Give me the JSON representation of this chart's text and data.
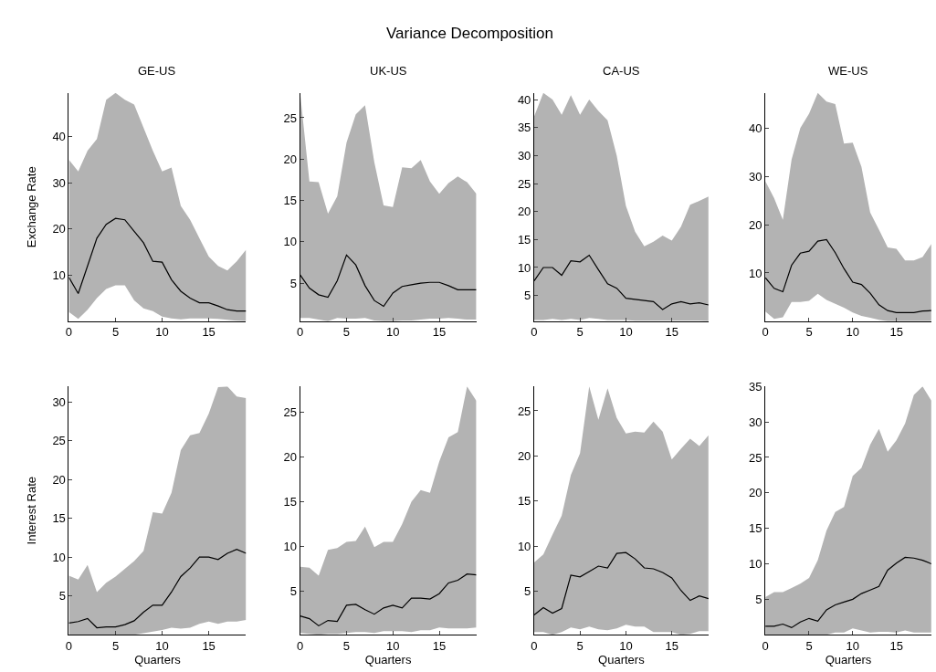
{
  "chart_data": [
    {
      "type": "line",
      "title": "GE-US",
      "ylabel": "Exchange Rate",
      "annotations": [
        "Variance Decomposition"
      ],
      "x": [
        0,
        1,
        2,
        3,
        4,
        5,
        6,
        7,
        8,
        9,
        10,
        11,
        12,
        13,
        14,
        15,
        16,
        17,
        18,
        19
      ],
      "xlim": [
        0,
        19
      ],
      "xticks": [
        0,
        5,
        10,
        15
      ],
      "ylim": [
        0,
        49.5
      ],
      "yticks": [
        10,
        20,
        30,
        40
      ],
      "marker": "none",
      "line_style": "solid",
      "series": [
        {
          "color": "#000000",
          "values": [
            9.5,
            6,
            12,
            18,
            21,
            22.3,
            22,
            19.5,
            17,
            13,
            12.8,
            9,
            6.5,
            5,
            4,
            4,
            3.3,
            2.5,
            2.2,
            2.2
          ],
          "upper": [
            35,
            32.5,
            37,
            39.5,
            48,
            49.5,
            48,
            47,
            42,
            37,
            32.5,
            33.3,
            25,
            22,
            18,
            14,
            12,
            11,
            13,
            15.5
          ],
          "lower": [
            2,
            0.5,
            2.5,
            5,
            7,
            7.8,
            7.8,
            4.5,
            2.8,
            2.2,
            1,
            0.6,
            0.4,
            0.6,
            0.6,
            0.6,
            0.5,
            0.3,
            0.1,
            0
          ]
        }
      ]
    },
    {
      "type": "line",
      "title": "UK-US",
      "x": [
        0,
        1,
        2,
        3,
        4,
        5,
        6,
        7,
        8,
        9,
        10,
        11,
        12,
        13,
        14,
        15,
        16,
        17,
        18,
        19
      ],
      "xlim": [
        0,
        19
      ],
      "xticks": [
        0,
        5,
        10,
        15
      ],
      "ylim": [
        0.4,
        28
      ],
      "yticks": [
        5,
        10,
        15,
        20,
        25
      ],
      "marker": "none",
      "line_style": "solid",
      "series": [
        {
          "color": "#000000",
          "values": [
            6,
            4.4,
            3.6,
            3.3,
            5.3,
            8.4,
            7.2,
            4.7,
            2.9,
            2.2,
            3.8,
            4.6,
            4.8,
            5,
            5.1,
            5.1,
            4.7,
            4.2,
            4.2,
            4.2
          ],
          "upper": [
            28,
            17.3,
            17.2,
            13.4,
            15.5,
            22,
            25.4,
            26.5,
            19.6,
            14.4,
            14.2,
            19,
            18.9,
            19.9,
            17.3,
            15.8,
            17.1,
            17.9,
            17.2,
            15.8
          ],
          "lower": [
            0.8,
            0.8,
            0.6,
            0.4,
            0.8,
            0.7,
            0.7,
            0.8,
            0.5,
            0.4,
            0.4,
            0.5,
            0.5,
            0.6,
            0.7,
            0.7,
            0.8,
            0.7,
            0.6,
            0.6
          ]
        }
      ]
    },
    {
      "type": "line",
      "title": "CA-US",
      "x": [
        0,
        1,
        2,
        3,
        4,
        5,
        6,
        7,
        8,
        9,
        10,
        11,
        12,
        13,
        14,
        15,
        16,
        17,
        18,
        19
      ],
      "xlim": [
        0,
        19
      ],
      "xticks": [
        0,
        5,
        10,
        15
      ],
      "ylim": [
        0.4,
        41.2
      ],
      "yticks": [
        5,
        10,
        15,
        20,
        25,
        30,
        35,
        40
      ],
      "marker": "none",
      "line_style": "solid",
      "series": [
        {
          "color": "#000000",
          "values": [
            7.6,
            10,
            10,
            8.6,
            11.2,
            11,
            12.2,
            9.6,
            7.1,
            6.3,
            4.5,
            4.3,
            4.1,
            3.9,
            2.5,
            3.5,
            3.9,
            3.5,
            3.7,
            3.3
          ],
          "upper": [
            37,
            41.2,
            40,
            37.3,
            40.8,
            37.3,
            40,
            38,
            36.3,
            30,
            21,
            16.4,
            13.8,
            14.6,
            15.7,
            14.8,
            17.3,
            21.2,
            21.9,
            22.7
          ],
          "lower": [
            0.6,
            0.6,
            0.8,
            0.6,
            0.8,
            0.6,
            1,
            0.8,
            0.6,
            0.6,
            0.6,
            0.5,
            0.5,
            0.5,
            0.5,
            0.5,
            0.5,
            0.5,
            0.5,
            0.4
          ]
        }
      ]
    },
    {
      "type": "line",
      "title": "WE-US",
      "x": [
        0,
        1,
        2,
        3,
        4,
        5,
        6,
        7,
        8,
        9,
        10,
        11,
        12,
        13,
        14,
        15,
        16,
        17,
        18,
        19
      ],
      "xlim": [
        0,
        19
      ],
      "xticks": [
        0,
        5,
        10,
        15
      ],
      "ylim": [
        0,
        47.3
      ],
      "yticks": [
        10,
        20,
        30,
        40
      ],
      "marker": "none",
      "line_style": "solid",
      "series": [
        {
          "color": "#000000",
          "values": [
            9,
            6.8,
            6.1,
            11.6,
            14.1,
            14.5,
            16.6,
            16.9,
            14.2,
            10.9,
            8.1,
            7.6,
            5.8,
            3.4,
            2.2,
            1.8,
            1.8,
            1.8,
            2.1,
            2.2
          ],
          "upper": [
            29,
            25.5,
            21,
            33.5,
            40,
            43,
            47.3,
            45.5,
            45,
            36.8,
            37,
            32,
            22.5,
            19,
            15.3,
            15,
            12.6,
            12.6,
            13.3,
            16
          ],
          "lower": [
            2,
            0.5,
            0.8,
            4,
            4,
            4.2,
            5.7,
            4.4,
            3.6,
            2.8,
            1.8,
            1.1,
            0.7,
            0.3,
            0,
            0,
            0,
            0,
            0,
            0
          ]
        }
      ]
    },
    {
      "type": "line",
      "xlabel": "Quarters",
      "ylabel": "Interest Rate",
      "x": [
        0,
        1,
        2,
        3,
        4,
        5,
        6,
        7,
        8,
        9,
        10,
        11,
        12,
        13,
        14,
        15,
        16,
        17,
        18,
        19
      ],
      "xlim": [
        0,
        19
      ],
      "xticks": [
        0,
        5,
        10,
        15
      ],
      "ylim": [
        0,
        32
      ],
      "yticks": [
        5,
        10,
        15,
        20,
        25,
        30
      ],
      "marker": "none",
      "line_style": "solid",
      "series": [
        {
          "color": "#000000",
          "values": [
            1.5,
            1.7,
            2.1,
            0.9,
            1,
            1,
            1.3,
            1.8,
            2.9,
            3.8,
            3.8,
            5.5,
            7.5,
            8.6,
            10,
            10,
            9.7,
            10.5,
            11,
            10.5
          ],
          "upper": [
            7.6,
            7.1,
            9,
            5.5,
            6.7,
            7.5,
            8.5,
            9.5,
            10.8,
            15.8,
            15.6,
            18.3,
            23.8,
            25.7,
            26,
            28.5,
            31.9,
            32,
            30.7,
            30.5
          ],
          "lower": [
            0,
            0,
            0,
            0,
            0,
            0,
            0,
            0,
            0.2,
            0.4,
            0.6,
            0.9,
            0.8,
            0.9,
            1.4,
            1.7,
            1.4,
            1.7,
            1.7,
            1.9
          ]
        }
      ]
    },
    {
      "type": "line",
      "xlabel": "Quarters",
      "x": [
        0,
        1,
        2,
        3,
        4,
        5,
        6,
        7,
        8,
        9,
        10,
        11,
        12,
        13,
        14,
        15,
        16,
        17,
        18,
        19
      ],
      "xlim": [
        0,
        19
      ],
      "xticks": [
        0,
        5,
        10,
        15
      ],
      "ylim": [
        0.1,
        27.9
      ],
      "yticks": [
        5,
        10,
        15,
        20,
        25
      ],
      "marker": "none",
      "line_style": "solid",
      "series": [
        {
          "color": "#000000",
          "values": [
            2.2,
            1.9,
            1.1,
            1.7,
            1.6,
            3.4,
            3.5,
            2.9,
            2.4,
            3.1,
            3.4,
            3.1,
            4.2,
            4.2,
            4.1,
            4.7,
            5.9,
            6.2,
            6.9,
            6.8
          ],
          "upper": [
            7.7,
            7.6,
            6.7,
            9.6,
            9.8,
            10.5,
            10.6,
            12.2,
            9.9,
            10.5,
            10.5,
            12.5,
            15,
            16.3,
            16,
            19.5,
            22.2,
            22.8,
            27.9,
            26.3
          ],
          "lower": [
            0.3,
            0.2,
            0.1,
            0.2,
            0.2,
            0.3,
            0.4,
            0.4,
            0.3,
            0.5,
            0.5,
            0.5,
            0.4,
            0.6,
            0.6,
            0.9,
            0.8,
            0.8,
            0.8,
            0.9
          ]
        }
      ]
    },
    {
      "type": "line",
      "xlabel": "Quarters",
      "x": [
        0,
        1,
        2,
        3,
        4,
        5,
        6,
        7,
        8,
        9,
        10,
        11,
        12,
        13,
        14,
        15,
        16,
        17,
        18,
        19
      ],
      "xlim": [
        0,
        19
      ],
      "xticks": [
        0,
        5,
        10,
        15
      ],
      "ylim": [
        0.2,
        27.7
      ],
      "yticks": [
        5,
        10,
        15,
        20,
        25
      ],
      "marker": "none",
      "line_style": "solid",
      "series": [
        {
          "color": "#000000",
          "values": [
            2.4,
            3.2,
            2.6,
            3.1,
            6.8,
            6.6,
            7.2,
            7.8,
            7.6,
            9.2,
            9.3,
            8.6,
            7.6,
            7.5,
            7.1,
            6.5,
            5.1,
            4,
            4.5,
            4.2
          ],
          "upper": [
            8.2,
            9.1,
            11.3,
            13.4,
            17.9,
            20.3,
            27.7,
            24,
            27.5,
            24.2,
            22.5,
            22.7,
            22.6,
            23.8,
            22.7,
            19.6,
            20.8,
            21.9,
            21.1,
            22.3
          ],
          "lower": [
            0.5,
            0.5,
            0.2,
            0.5,
            1,
            0.8,
            1.1,
            0.8,
            0.7,
            0.9,
            1.3,
            1.1,
            1.1,
            0.5,
            0.5,
            0.5,
            0.2,
            0.3,
            0.6,
            0.6
          ]
        }
      ]
    },
    {
      "type": "line",
      "xlabel": "Quarters",
      "x": [
        0,
        1,
        2,
        3,
        4,
        5,
        6,
        7,
        8,
        9,
        10,
        11,
        12,
        13,
        14,
        15,
        16,
        17,
        18,
        19
      ],
      "xlim": [
        0,
        19
      ],
      "xticks": [
        0,
        5,
        10,
        15
      ],
      "ylim": [
        0,
        35
      ],
      "yticks": [
        5,
        10,
        15,
        20,
        25,
        30,
        35
      ],
      "marker": "none",
      "line_style": "solid",
      "series": [
        {
          "color": "#000000",
          "values": [
            1.2,
            1.2,
            1.5,
            1,
            1.8,
            2.3,
            1.9,
            3.5,
            4.2,
            4.6,
            5,
            5.8,
            6.3,
            6.8,
            9.1,
            10.1,
            10.9,
            10.8,
            10.5,
            10
          ],
          "upper": [
            5.3,
            6,
            6,
            6.6,
            7.2,
            8,
            10.5,
            14.7,
            17.3,
            18,
            22.4,
            23.5,
            26.8,
            29,
            25.8,
            27.4,
            29.8,
            33.8,
            35,
            33
          ],
          "lower": [
            0,
            0,
            0,
            0,
            0,
            0,
            0,
            0,
            0.3,
            0.3,
            0.9,
            0.6,
            0.3,
            0.4,
            0.4,
            0.3,
            0.6,
            0.3,
            0.3,
            0.3
          ]
        }
      ]
    }
  ]
}
